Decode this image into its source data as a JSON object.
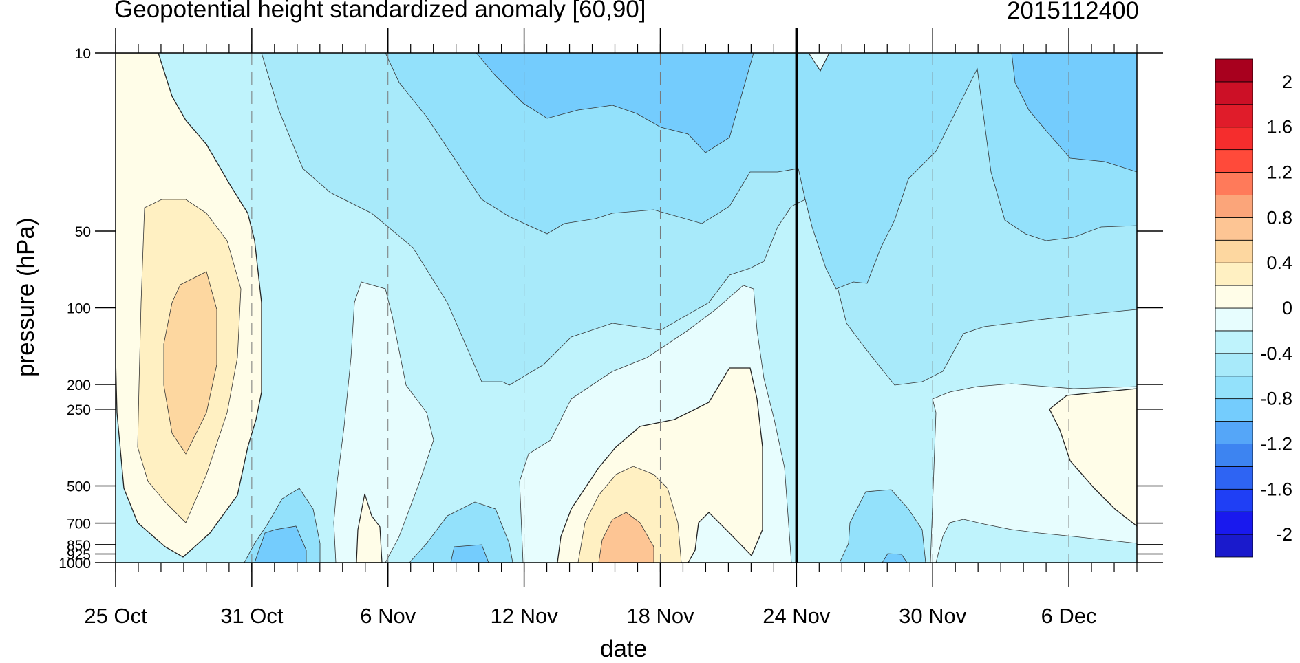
{
  "chart_data": {
    "type": "heatmap",
    "title": "Geopotential height standardized anomaly [60,90]",
    "date_stamp": "2015112400",
    "xlabel": "date",
    "ylabel": "pressure (hPa)",
    "x_ticks": [
      "25 Oct",
      "31 Oct",
      "6 Nov",
      "12 Nov",
      "18 Nov",
      "24 Nov",
      "30 Nov",
      "6 Dec"
    ],
    "x_range": [
      "25 Oct",
      "9 Dec"
    ],
    "y_ticks": [
      "10",
      "50",
      "100",
      "200",
      "250",
      "500",
      "700",
      "850",
      "925",
      "1000"
    ],
    "y_range": [
      10,
      1000
    ],
    "y_scale": "log (inverted, 10 hPa at top)",
    "current_date_marker": "24 Nov",
    "colorbar": {
      "levels": [
        -2.2,
        -2.0,
        -1.8,
        -1.6,
        -1.4,
        -1.2,
        -1.0,
        -0.8,
        -0.6,
        -0.4,
        -0.2,
        0,
        0.2,
        0.4,
        0.6,
        0.8,
        1.0,
        1.2,
        1.4,
        1.6,
        1.8,
        2.0,
        2.2
      ],
      "labels": [
        "2",
        "1.6",
        "1.2",
        "0.8",
        "0.4",
        "0",
        "-0.4",
        "-0.8",
        "-1.2",
        "-1.6",
        "-2"
      ],
      "colors": [
        "#1a1acc",
        "#1919ee",
        "#1f3ff5",
        "#2e64f3",
        "#3d84f1",
        "#55a6f8",
        "#74ccfd",
        "#93e1fb",
        "#a8eafa",
        "#bff3fc",
        "#e7fdfe",
        "#fffde8",
        "#fff0c2",
        "#fdd7a0",
        "#fdc594",
        "#fba57a",
        "#ff7a5a",
        "#ff4a3a",
        "#f52d2d",
        "#e01c2a",
        "#cc1026",
        "#a8001e"
      ]
    },
    "regions": [
      {
        "value_band": [
          0,
          0.2
        ],
        "where": "25 Oct – 31 Oct, 10–1000 hPa"
      },
      {
        "value_band": [
          0.4,
          0.6
        ],
        "where": "27–30 Oct, 80–400 hPa"
      },
      {
        "value_band": [
          -0.8,
          -0.6
        ],
        "where": "10–23 Nov and 5–9 Dec, 10–30 hPa"
      },
      {
        "value_band": [
          0.4,
          0.6
        ],
        "where": "16–18 Nov, 850–1000 hPa"
      }
    ]
  }
}
